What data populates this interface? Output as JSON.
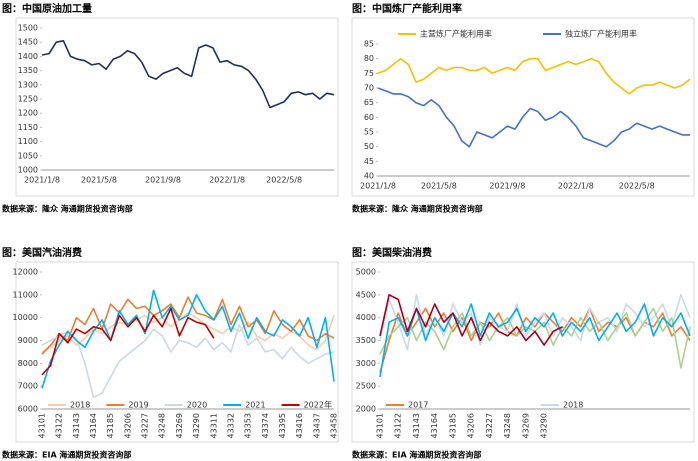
{
  "chart_data": [
    {
      "type": "line",
      "title": "图：中国原油加工量",
      "source": "数据来源：隆众    海通期货投资咨询部",
      "categories": [
        "2021/1/8",
        null,
        null,
        null,
        null,
        null,
        null,
        null,
        "2021/5/8",
        null,
        null,
        null,
        null,
        null,
        null,
        null,
        null,
        "2021/9/8",
        null,
        null,
        null,
        null,
        null,
        null,
        null,
        null,
        "2022/1/8",
        null,
        null,
        null,
        null,
        null,
        null,
        null,
        "2022/5/8",
        null,
        null,
        null,
        null,
        null,
        null,
        null
      ],
      "series": [
        {
          "color": "#1f2f5e",
          "values": [
            1405,
            1410,
            1450,
            1455,
            1400,
            1390,
            1385,
            1370,
            1375,
            1355,
            1390,
            1400,
            1420,
            1410,
            1380,
            1330,
            1320,
            1340,
            1350,
            1360,
            1340,
            1330,
            1430,
            1440,
            1430,
            1380,
            1385,
            1370,
            1365,
            1350,
            1320,
            1280,
            1220,
            1230,
            1240,
            1270,
            1275,
            1265,
            1270,
            1250,
            1270,
            1265
          ]
        }
      ],
      "ylim": [
        1000,
        1500
      ],
      "yticks": [
        1000,
        1050,
        1100,
        1150,
        1200,
        1250,
        1300,
        1350,
        1400,
        1450,
        1500
      ]
    },
    {
      "type": "line",
      "title": "图：中国炼厂产能利用率",
      "source": "数据来源：隆众    海通期货投资咨询部",
      "categories": [
        "2021/1/8",
        null,
        null,
        null,
        null,
        null,
        null,
        null,
        "2021/5/8",
        null,
        null,
        null,
        null,
        null,
        null,
        null,
        null,
        "2021/9/8",
        null,
        null,
        null,
        null,
        null,
        null,
        null,
        null,
        "2022/1/8",
        null,
        null,
        null,
        null,
        null,
        null,
        null,
        "2022/5/8",
        null,
        null,
        null,
        null,
        null,
        null,
        null
      ],
      "series": [
        {
          "name": "主营炼厂产能利用率",
          "color": "#f5c000",
          "values": [
            75,
            76,
            78,
            80,
            78,
            72,
            73,
            75,
            77,
            76,
            77,
            77,
            76,
            76,
            77,
            75,
            76,
            77,
            76,
            79,
            80,
            80,
            76,
            77,
            78,
            79,
            78,
            79,
            80,
            79,
            75,
            72,
            70,
            68,
            70,
            71,
            71,
            72,
            71,
            70,
            71,
            73
          ]
        },
        {
          "name": "独立炼厂产能利用率",
          "color": "#4472c4",
          "values": [
            70,
            69,
            68,
            68,
            67,
            65,
            64,
            66,
            64,
            60,
            57,
            52,
            50,
            55,
            54,
            53,
            55,
            57,
            56,
            60,
            63,
            62,
            59,
            60,
            62,
            60,
            57,
            53,
            52,
            51,
            50,
            52,
            55,
            56,
            58,
            57,
            56,
            57,
            56,
            55,
            54,
            54
          ]
        }
      ],
      "ylim": [
        40,
        85
      ],
      "yticks": [
        40,
        45,
        50,
        55,
        60,
        65,
        70,
        75,
        80,
        85
      ]
    },
    {
      "type": "line",
      "title": "图：美国汽油消费",
      "source": "数据来源：EIA   海通期货投资咨询部",
      "categories": [
        "43101",
        null,
        "43122",
        null,
        "43143",
        null,
        "43164",
        null,
        "43185",
        null,
        "43206",
        null,
        "43227",
        null,
        "43248",
        null,
        "43269",
        null,
        "43290",
        null,
        "43311",
        null,
        "43332",
        null,
        "43353",
        null,
        "43374",
        null,
        "43395",
        null,
        "43416",
        null,
        "43437",
        null,
        "43458"
      ],
      "series": [
        {
          "name": "2018",
          "color": "#f8cbad",
          "values": [
            8500,
            8700,
            9000,
            9200,
            8800,
            9100,
            9500,
            9300,
            9600,
            9800,
            9700,
            9900,
            10100,
            9800,
            10000,
            9600,
            9900,
            10200,
            10000,
            9700,
            9500,
            9300,
            9600,
            9400,
            9800,
            9200,
            9000,
            9300,
            9100,
            9400,
            9200,
            8800,
            8600,
            9000,
            10100
          ]
        },
        {
          "name": "2019",
          "color": "#ed7d31",
          "values": [
            8400,
            8800,
            9300,
            9000,
            10000,
            9700,
            10400,
            9500,
            10600,
            10200,
            10800,
            10400,
            10500,
            10100,
            10300,
            10600,
            10000,
            10900,
            10200,
            10100,
            9900,
            10800,
            9700,
            10500,
            9600,
            9900,
            9300,
            10300,
            9700,
            9400,
            9900,
            9200,
            9000,
            9300,
            9100
          ]
        },
        {
          "name": "2020",
          "color": "#c9d9ea",
          "values": [
            8800,
            9000,
            9200,
            9400,
            9100,
            8000,
            6500,
            6700,
            7400,
            8100,
            8400,
            8700,
            9000,
            9500,
            9200,
            8500,
            9000,
            8900,
            8700,
            9100,
            8600,
            8900,
            8500,
            9700,
            8800,
            9100,
            8500,
            8600,
            8200,
            8700,
            8300,
            8000,
            8200,
            8400,
            8500
          ]
        },
        {
          "name": "2021",
          "color": "#00b0f0",
          "values": [
            6900,
            8100,
            8800,
            9400,
            9000,
            8700,
            9400,
            9900,
            9000,
            10300,
            9700,
            10100,
            9300,
            11200,
            10000,
            10500,
            9900,
            10100,
            11000,
            10300,
            9900,
            10500,
            9400,
            10200,
            9100,
            10000,
            9400,
            9200,
            9900,
            9600,
            9200,
            10000,
            8700,
            10000,
            7200
          ]
        },
        {
          "name": "2022年",
          "color": "#c00000",
          "values": [
            7500,
            7900,
            9300,
            8900,
            9500,
            9300,
            9600,
            9500,
            9000,
            10100,
            9600,
            10000,
            9400,
            10100,
            9600,
            10400,
            9200,
            10000,
            9800,
            9700,
            9100,
            null,
            null,
            null,
            null,
            null,
            null,
            null,
            null,
            null,
            null,
            null,
            null,
            null,
            null
          ]
        }
      ],
      "ylim": [
        6000,
        12000
      ],
      "yticks": [
        6000,
        7000,
        8000,
        9000,
        10000,
        11000,
        12000
      ]
    },
    {
      "type": "line",
      "title": "图：美国柴油消费",
      "source": "数据来源：EIA   海通期货投资咨询部",
      "categories": [
        "43101",
        null,
        "43122",
        null,
        "43143",
        null,
        "43164",
        null,
        "43185",
        null,
        "43206",
        null,
        "43227",
        null,
        "43248",
        null,
        "43269",
        null,
        "43290",
        null,
        null,
        null,
        null,
        null,
        null,
        null,
        null,
        null,
        null,
        null,
        null,
        null,
        null,
        null,
        null
      ],
      "series": [
        {
          "name": "2017",
          "color": "#ed7d31",
          "values": [
            2800,
            3500,
            4100,
            3600,
            3900,
            4200,
            3800,
            4100,
            3700,
            4000,
            3500,
            3900,
            3800,
            4100,
            3700,
            3600,
            4000,
            3800,
            4100,
            3900,
            3700,
            4000,
            3800,
            4200,
            3700,
            3900,
            3800,
            4000,
            3600,
            3900,
            3800,
            4100,
            3600,
            3800,
            3500
          ]
        },
        {
          "name": "2018",
          "color": "#c9d9ea",
          "values": [
            3500,
            4400,
            3900,
            3300,
            4500,
            3600,
            4000,
            3600,
            4300,
            3900,
            4100,
            3400,
            4000,
            3800,
            3700,
            4300,
            3600,
            3900,
            4100,
            3600,
            4000,
            3800,
            3500,
            4200,
            3900,
            4000,
            3700,
            4300,
            4100,
            3800,
            4000,
            4300,
            3800,
            4500,
            4000
          ]
        },
        {
          "color": "#a9d18e",
          "values": [
            3200,
            3600,
            3800,
            4000,
            3500,
            3900,
            3700,
            3300,
            3800,
            4100,
            3600,
            3900,
            3500,
            3800,
            4000,
            3600,
            3800,
            3700,
            3900,
            3400,
            3800,
            3600,
            4000,
            3700,
            3900,
            3500,
            3800,
            4100,
            3600,
            3900,
            4200,
            3700,
            4000,
            2900,
            3800
          ]
        },
        {
          "color": "#00b0f0",
          "values": [
            2700,
            3900,
            4000,
            3600,
            4200,
            3500,
            4000,
            3700,
            4100,
            3800,
            4300,
            3600,
            4100,
            3800,
            3900,
            4200,
            3700,
            4000,
            3800,
            4100,
            3600,
            3900,
            3700,
            4000,
            3500,
            3800,
            4100,
            3700,
            3900,
            4300,
            3600,
            4000,
            3800,
            4100,
            3600
          ]
        },
        {
          "color": "#a50021",
          "values": [
            3600,
            4500,
            4400,
            3700,
            4200,
            3800,
            4300,
            3900,
            4100,
            3600,
            4000,
            3500,
            3900,
            3700,
            3600,
            3800,
            3500,
            3700,
            3400,
            3700,
            3800,
            null,
            null,
            null,
            null,
            null,
            null,
            null,
            null,
            null,
            null,
            null,
            null,
            null,
            null
          ]
        }
      ],
      "ylim": [
        2000,
        5000
      ],
      "yticks": [
        2000,
        2500,
        3000,
        3500,
        4000,
        4500,
        5000
      ]
    }
  ]
}
